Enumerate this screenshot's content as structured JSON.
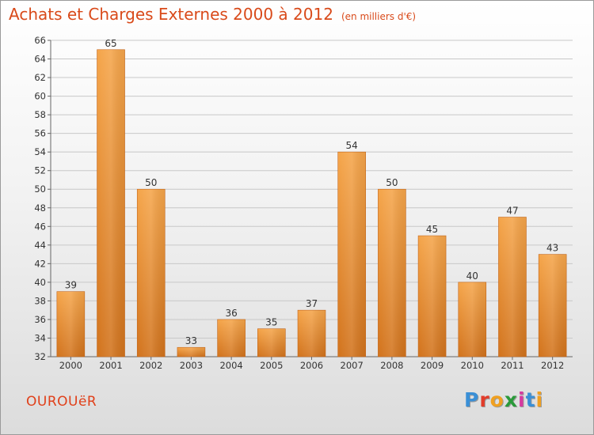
{
  "header": {
    "title": "Achats et Charges Externes 2000 à 2012",
    "subtitle": "(en milliers d'€)"
  },
  "footer": {
    "place": "OUROUëR",
    "logo": "Proxiti",
    "logo_colors": [
      "#3a8fd6",
      "#e23c2a",
      "#f0a020",
      "#2a9a3a",
      "#d63aa0",
      "#3a8fd6",
      "#f0a020"
    ]
  },
  "colors": {
    "bar_light": "#f5a54a",
    "bar_dark": "#d2731c",
    "text": "#333333",
    "grid": "#c8c8c8"
  },
  "chart_data": {
    "type": "bar",
    "categories": [
      "2000",
      "2001",
      "2002",
      "2003",
      "2004",
      "2005",
      "2006",
      "2007",
      "2008",
      "2009",
      "2010",
      "2011",
      "2012"
    ],
    "values": [
      39,
      65,
      50,
      33,
      36,
      35,
      37,
      54,
      50,
      45,
      40,
      47,
      43
    ],
    "ylim": [
      32,
      66
    ],
    "yticks": [
      32,
      34,
      36,
      38,
      40,
      42,
      44,
      46,
      48,
      50,
      52,
      54,
      56,
      58,
      60,
      62,
      64,
      66
    ],
    "grid": true,
    "title": "Achats et Charges Externes 2000 à 2012",
    "xlabel": "",
    "ylabel": ""
  }
}
